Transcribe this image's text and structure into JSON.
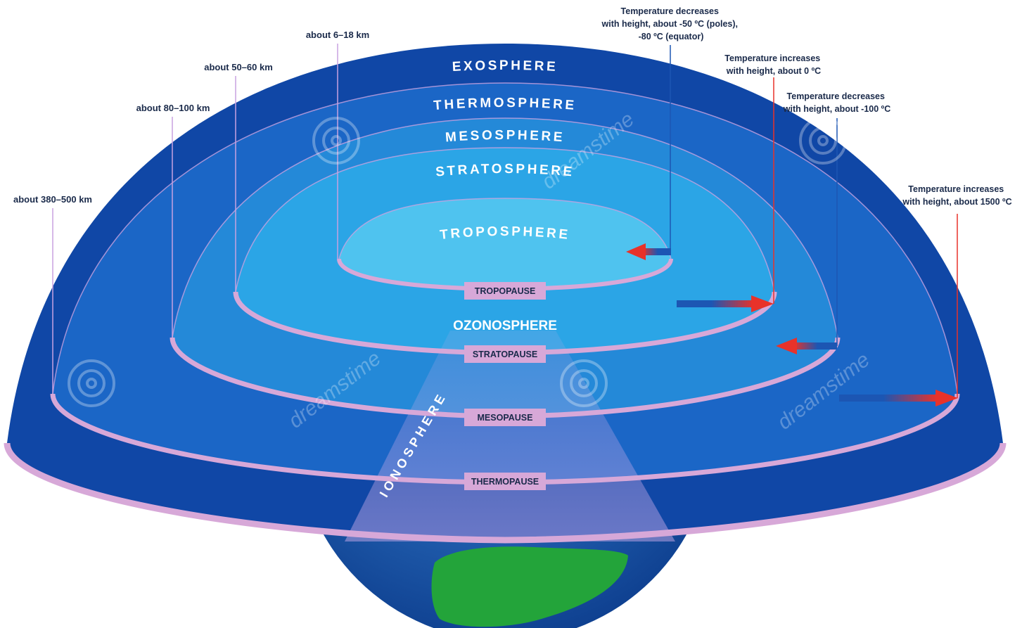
{
  "layers": {
    "exosphere": "EXOSPHERE",
    "thermosphere": "THERMOSPHERE",
    "mesosphere": "MESOSPHERE",
    "stratosphere": "STRATOSPHERE",
    "troposphere": "TROPOSPHERE",
    "ozonosphere": "OZONOSPHERE",
    "ionosphere": "IONOSPHERE"
  },
  "pauses": {
    "tropopause": "TROPOPAUSE",
    "stratopause": "STRATOPAUSE",
    "mesopause": "MESOPAUSE",
    "thermopause": "THERMOPAUSE"
  },
  "altitudes": {
    "troposphere": "about 6–18 km",
    "stratosphere": "about 50–60 km",
    "mesosphere": "about 80–100 km",
    "thermosphere": "about 380–500 km"
  },
  "temperatures": {
    "troposphere": [
      "Temperature decreases",
      "with height, about -50 ºC (poles),",
      "-80 ºC (equator)"
    ],
    "stratosphere": [
      "Temperature increases",
      "with height, about 0 ºC"
    ],
    "mesosphere": [
      "Temperature decreases",
      "with height, about -100 ºC"
    ],
    "thermosphere": [
      "Temperature increases",
      "with height, about 1500 ºC"
    ]
  },
  "watermark": "dreamstime",
  "colors": {
    "outer_dome": "#1047a6",
    "inner_dome": "#4fc3ef",
    "pause_band": "#d7a8d8",
    "guide_line": "#c8a2e0",
    "arrow_warm": "#e8322a",
    "arrow_cool": "#1c56b3",
    "land": "#23a43a"
  }
}
